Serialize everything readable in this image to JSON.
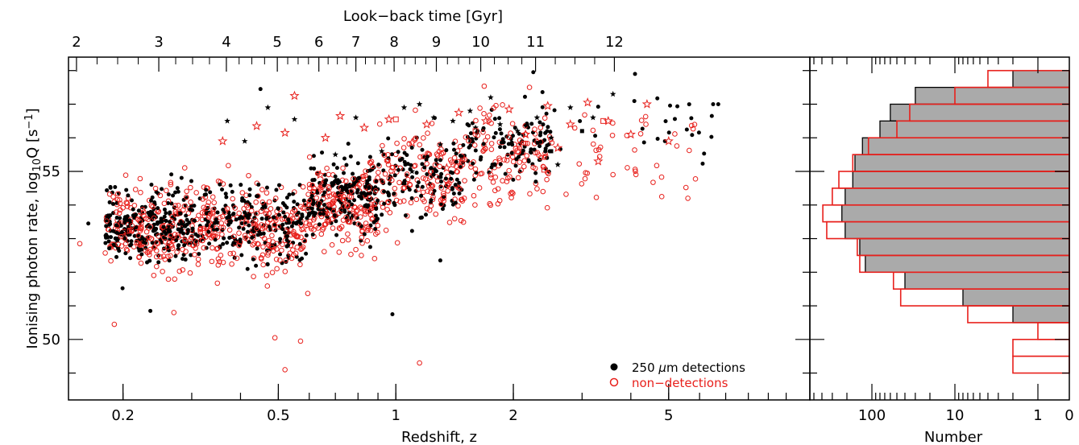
{
  "colors": {
    "detections": "#000000",
    "nondetections": "#e8201c",
    "hist_fill": "#aaaaaa"
  },
  "chart_data": [
    {
      "type": "scatter",
      "xlabel": "Redshift, z",
      "ylabel_main": "Ionising photon rate, log",
      "ylabel_sub": "10",
      "ylabel_tail": "Q [s",
      "ylabel_sup": "−1",
      "ylabel_end": "]",
      "top_axis_label": "Look−back time [Gyr]",
      "x_scale": "log",
      "xlim": [
        0.145,
        11.5
      ],
      "ylim": [
        48.2,
        58.4
      ],
      "x_ticklabels": [
        "0.2",
        "0.5",
        "1",
        "2",
        "5"
      ],
      "x_tickvalues": [
        0.2,
        0.5,
        1,
        2,
        5
      ],
      "y_ticklabels": [
        "50",
        "55"
      ],
      "y_tickvalues": [
        50,
        55
      ],
      "top_ticks": [
        {
          "label": "2",
          "z": 0.152
        },
        {
          "label": "3",
          "z": 0.247
        },
        {
          "label": "4",
          "z": 0.368
        },
        {
          "label": "5",
          "z": 0.497
        },
        {
          "label": "6",
          "z": 0.635
        },
        {
          "label": "7",
          "z": 0.79
        },
        {
          "label": "8",
          "z": 0.99
        },
        {
          "label": "9",
          "z": 1.27
        },
        {
          "label": "10",
          "z": 1.65
        },
        {
          "label": "11",
          "z": 2.28
        },
        {
          "label": "12",
          "z": 3.63
        }
      ],
      "legend": {
        "position": "bottom-right",
        "detections_prefix": "250 ",
        "detections_mu": "μ",
        "detections_suffix": "m detections",
        "nondetections": "non−detections"
      },
      "series": [
        {
          "name": "250 μm detections",
          "marker": "filled-circle",
          "color": "#000000",
          "clusters": [
            {
              "z": [
                0.18,
                0.3
              ],
              "logQ_mean": 53.4,
              "logQ_sd": 0.55,
              "n": 260
            },
            {
              "z": [
                0.3,
                0.6
              ],
              "logQ_mean": 53.4,
              "logQ_sd": 0.55,
              "n": 230
            },
            {
              "z": [
                0.6,
                0.9
              ],
              "logQ_mean": 54.2,
              "logQ_sd": 0.55,
              "n": 200
            },
            {
              "z": [
                0.9,
                1.5
              ],
              "logQ_mean": 54.8,
              "logQ_sd": 0.6,
              "n": 120
            },
            {
              "z": [
                1.5,
                2.5
              ],
              "logQ_mean": 55.8,
              "logQ_sd": 0.6,
              "n": 110
            },
            {
              "z": [
                2.5,
                6.5
              ],
              "logQ_mean": 56.4,
              "logQ_sd": 0.5,
              "n": 25
            }
          ],
          "points": [
            {
              "z": 0.163,
              "logQ": 53.45
            },
            {
              "z": 0.45,
              "logQ": 57.45
            },
            {
              "z": 2.25,
              "logQ": 57.95
            },
            {
              "z": 4.1,
              "logQ": 57.9
            },
            {
              "z": 6.5,
              "logQ": 57.0
            },
            {
              "z": 6.7,
              "logQ": 57.0
            },
            {
              "z": 0.98,
              "logQ": 50.75
            },
            {
              "z": 0.235,
              "logQ": 50.85
            },
            {
              "z": 1.3,
              "logQ": 52.35
            }
          ]
        },
        {
          "name": "non−detections",
          "marker": "open-circle",
          "color": "#e8201c",
          "clusters": [
            {
              "z": [
                0.18,
                0.3
              ],
              "logQ_mean": 53.3,
              "logQ_sd": 0.65,
              "n": 200
            },
            {
              "z": [
                0.3,
                0.6
              ],
              "logQ_mean": 53.3,
              "logQ_sd": 0.6,
              "n": 260
            },
            {
              "z": [
                0.6,
                0.9
              ],
              "logQ_mean": 54.0,
              "logQ_sd": 0.65,
              "n": 190
            },
            {
              "z": [
                0.9,
                1.5
              ],
              "logQ_mean": 54.7,
              "logQ_sd": 0.7,
              "n": 150
            },
            {
              "z": [
                1.5,
                2.5
              ],
              "logQ_mean": 55.4,
              "logQ_sd": 0.75,
              "n": 120
            },
            {
              "z": [
                2.5,
                6.0
              ],
              "logQ_mean": 55.6,
              "logQ_sd": 0.7,
              "n": 40
            }
          ],
          "points": [
            {
              "z": 0.19,
              "logQ": 50.45
            },
            {
              "z": 0.27,
              "logQ": 50.8
            },
            {
              "z": 0.49,
              "logQ": 50.05
            },
            {
              "z": 0.52,
              "logQ": 49.1
            },
            {
              "z": 0.57,
              "logQ": 49.95
            },
            {
              "z": 1.15,
              "logQ": 49.3
            },
            {
              "z": 0.155,
              "logQ": 52.85
            },
            {
              "z": 4.8,
              "logQ": 54.25
            },
            {
              "z": 5.6,
              "logQ": 54.2
            },
            {
              "z": 2.2,
              "logQ": 57.5
            }
          ]
        },
        {
          "name": "detections (star)",
          "marker": "star",
          "color": "#000000",
          "points": [
            {
              "z": 0.37,
              "logQ": 56.5
            },
            {
              "z": 0.41,
              "logQ": 55.9
            },
            {
              "z": 0.47,
              "logQ": 56.9
            },
            {
              "z": 0.55,
              "logQ": 56.55
            },
            {
              "z": 0.79,
              "logQ": 56.6
            },
            {
              "z": 0.92,
              "logQ": 55.6
            },
            {
              "z": 1.05,
              "logQ": 56.9
            },
            {
              "z": 1.15,
              "logQ": 57.0
            },
            {
              "z": 1.25,
              "logQ": 56.6
            },
            {
              "z": 1.4,
              "logQ": 56.5
            },
            {
              "z": 1.55,
              "logQ": 56.8
            },
            {
              "z": 1.6,
              "logQ": 56.3
            },
            {
              "z": 1.85,
              "logQ": 56.4
            },
            {
              "z": 2.05,
              "logQ": 56.2
            },
            {
              "z": 2.3,
              "logQ": 56.6
            },
            {
              "z": 2.5,
              "logQ": 56.0
            },
            {
              "z": 2.8,
              "logQ": 56.9
            },
            {
              "z": 3.2,
              "logQ": 56.6
            },
            {
              "z": 3.6,
              "logQ": 57.3
            },
            {
              "z": 1.3,
              "logQ": 55.8
            },
            {
              "z": 0.7,
              "logQ": 55.5
            },
            {
              "z": 1.75,
              "logQ": 57.2
            },
            {
              "z": 2.6,
              "logQ": 55.2
            },
            {
              "z": 1.1,
              "logQ": 55.0
            }
          ]
        },
        {
          "name": "non−detections (star)",
          "marker": "open-star",
          "color": "#e8201c",
          "points": [
            {
              "z": 0.55,
              "logQ": 57.25
            },
            {
              "z": 0.36,
              "logQ": 55.9
            },
            {
              "z": 0.44,
              "logQ": 56.35
            },
            {
              "z": 0.52,
              "logQ": 56.15
            },
            {
              "z": 0.58,
              "logQ": 53.3
            },
            {
              "z": 0.66,
              "logQ": 56.0
            },
            {
              "z": 0.72,
              "logQ": 56.65
            },
            {
              "z": 0.83,
              "logQ": 56.3
            },
            {
              "z": 0.96,
              "logQ": 56.55
            },
            {
              "z": 1.1,
              "logQ": 55.85
            },
            {
              "z": 1.2,
              "logQ": 56.4
            },
            {
              "z": 1.45,
              "logQ": 56.75
            },
            {
              "z": 1.7,
              "logQ": 56.5
            },
            {
              "z": 1.95,
              "logQ": 56.85
            },
            {
              "z": 2.15,
              "logQ": 56.1
            },
            {
              "z": 2.45,
              "logQ": 56.95
            },
            {
              "z": 2.8,
              "logQ": 56.4
            },
            {
              "z": 3.1,
              "logQ": 57.05
            },
            {
              "z": 3.5,
              "logQ": 56.5
            },
            {
              "z": 4.0,
              "logQ": 56.1
            },
            {
              "z": 4.4,
              "logQ": 57.0
            },
            {
              "z": 5.0,
              "logQ": 55.9
            },
            {
              "z": 2.6,
              "logQ": 55.7
            },
            {
              "z": 3.3,
              "logQ": 55.3
            },
            {
              "z": 0.64,
              "logQ": 54.9
            },
            {
              "z": 1.35,
              "logQ": 55.1
            }
          ]
        },
        {
          "name": "non−detections (square)",
          "marker": "open-square",
          "color": "#e8201c",
          "points": [
            {
              "z": 1.0,
              "logQ": 56.55
            },
            {
              "z": 2.4,
              "logQ": 55.05
            },
            {
              "z": 3.4,
              "logQ": 56.5
            },
            {
              "z": 2.05,
              "logQ": 55.6
            },
            {
              "z": 1.6,
              "logQ": 56.2
            }
          ]
        },
        {
          "name": "detections (square)",
          "marker": "filled-square",
          "color": "#000000",
          "points": [
            {
              "z": 2.5,
              "logQ": 55.6
            },
            {
              "z": 3.0,
              "logQ": 56.2
            }
          ]
        }
      ]
    },
    {
      "type": "bar",
      "orientation": "horizontal",
      "xlabel": "Number",
      "x_scale": "log-reversed",
      "xlim": [
        0,
        600
      ],
      "x_ticklabels": [
        "100",
        "10",
        "1",
        "0"
      ],
      "x_tickvalues": [
        100,
        10,
        1,
        0
      ],
      "bins_logQ": [
        [
          57.5,
          58.0
        ],
        [
          57.0,
          57.5
        ],
        [
          56.5,
          57.0
        ],
        [
          56.0,
          56.5
        ],
        [
          55.5,
          56.0
        ],
        [
          55.0,
          55.5
        ],
        [
          54.5,
          55.0
        ],
        [
          54.0,
          54.5
        ],
        [
          53.5,
          54.0
        ],
        [
          53.0,
          53.5
        ],
        [
          52.5,
          53.0
        ],
        [
          52.0,
          52.5
        ],
        [
          51.5,
          52.0
        ],
        [
          51.0,
          51.5
        ],
        [
          50.5,
          51.0
        ],
        [
          50.0,
          50.5
        ],
        [
          49.5,
          50.0
        ],
        [
          49.0,
          49.5
        ]
      ],
      "series": [
        {
          "name": "250 μm detections",
          "style": "filled-grey",
          "counts": [
            2,
            30,
            60,
            80,
            130,
            160,
            170,
            210,
            230,
            210,
            140,
            120,
            40,
            8,
            2,
            0,
            0,
            0
          ]
        },
        {
          "name": "non−detections",
          "style": "red-outline",
          "counts": [
            4,
            10,
            35,
            50,
            110,
            170,
            250,
            300,
            390,
            350,
            150,
            140,
            55,
            45,
            7,
            1,
            2,
            2
          ]
        }
      ]
    }
  ]
}
